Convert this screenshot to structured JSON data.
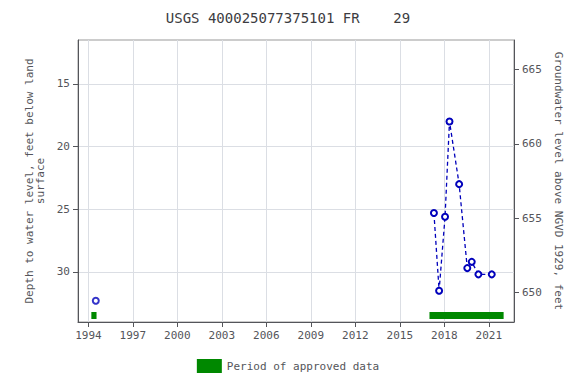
{
  "chart_data": {
    "type": "line",
    "title": "USGS 400025077375101 FR    29",
    "ylabel": "Depth to water level, feet below land\nsurface",
    "y2label": "Groundwater level above NGVD 1929, feet",
    "xlim": [
      1993.3,
      2022.7
    ],
    "xticks": [
      1994,
      1997,
      2000,
      2003,
      2006,
      2009,
      2012,
      2015,
      2018,
      2021
    ],
    "ylim": [
      34.0,
      11.5
    ],
    "yticks": [
      15,
      20,
      25,
      30
    ],
    "y2lim": [
      648,
      667
    ],
    "y2ticks": [
      650,
      655,
      660,
      665
    ],
    "grid": true,
    "legend": "bottom",
    "series": [
      {
        "type": "line",
        "color": "#0000bb",
        "marker": "open circle",
        "line_style": "dashed",
        "x": [
          2017.3,
          2017.65,
          2018.05,
          2018.35,
          2019.0,
          2019.55,
          2019.85,
          2020.3,
          2021.2
        ],
        "values": [
          25.3,
          31.5,
          25.6,
          18.0,
          23.0,
          29.7,
          29.2,
          30.2,
          30.2
        ]
      },
      {
        "type": "scatter",
        "color": "#0000bb",
        "marker": "open circle",
        "x": [
          1994.5
        ],
        "values": [
          32.3
        ]
      },
      {
        "name": "Period of approved data",
        "type": "span",
        "color": "#008800",
        "starts": [
          1994.2,
          2017.0
        ],
        "ends": [
          1994.55,
          2022.0
        ]
      }
    ]
  }
}
